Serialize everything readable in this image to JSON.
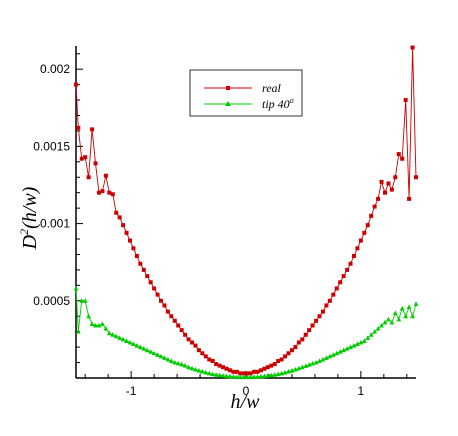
{
  "chart_data": {
    "type": "line",
    "title": "",
    "xlabel": "h/w",
    "ylabel_main": "D",
    "ylabel_sup": "2",
    "ylabel_rest": "(h/w)",
    "xlim": [
      -1.48,
      1.48
    ],
    "ylim": [
      0,
      0.00215
    ],
    "x_ticks": [
      -1,
      0,
      1
    ],
    "x_tick_labels": [
      "-1",
      "0",
      "1"
    ],
    "y_ticks": [
      0.0005,
      0.001,
      0.0015,
      0.002
    ],
    "y_tick_labels": [
      "0.0005",
      "0.001",
      "0.0015",
      "0.002"
    ],
    "grid": false,
    "legend_placement": "top-center",
    "series": [
      {
        "name": "real",
        "name_sup": "",
        "color": "#cc0000",
        "marker": "square",
        "points": [
          [
            -1.48,
            0.0019
          ],
          [
            -1.46,
            0.00162
          ],
          [
            -1.43,
            0.00142
          ],
          [
            -1.4,
            0.00143
          ],
          [
            -1.37,
            0.0013
          ],
          [
            -1.34,
            0.00161
          ],
          [
            -1.31,
            0.00139
          ],
          [
            -1.28,
            0.0012
          ],
          [
            -1.25,
            0.00121
          ],
          [
            -1.22,
            0.00131
          ],
          [
            -1.19,
            0.0012
          ],
          [
            -1.16,
            0.00119
          ],
          [
            -1.13,
            0.00107
          ],
          [
            -1.1,
            0.00104
          ],
          [
            -1.07,
            0.00099
          ],
          [
            -1.04,
            0.00094
          ],
          [
            -1.01,
            0.00089
          ],
          [
            -0.98,
            0.00084
          ],
          [
            -0.95,
            0.00079
          ],
          [
            -0.92,
            0.00074
          ],
          [
            -0.89,
            0.0007
          ],
          [
            -0.86,
            0.00066
          ],
          [
            -0.83,
            0.00062
          ],
          [
            -0.8,
            0.00058
          ],
          [
            -0.77,
            0.00054
          ],
          [
            -0.74,
            0.0005
          ],
          [
            -0.71,
            0.00047
          ],
          [
            -0.68,
            0.00043
          ],
          [
            -0.65,
            0.0004
          ],
          [
            -0.62,
            0.00037
          ],
          [
            -0.59,
            0.00034
          ],
          [
            -0.56,
            0.00031
          ],
          [
            -0.53,
            0.00028
          ],
          [
            -0.5,
            0.00025
          ],
          [
            -0.47,
            0.00023
          ],
          [
            -0.44,
            0.00021
          ],
          [
            -0.41,
            0.00018
          ],
          [
            -0.38,
            0.00016
          ],
          [
            -0.35,
            0.00014
          ],
          [
            -0.32,
            0.00012
          ],
          [
            -0.29,
            0.00011
          ],
          [
            -0.26,
            9e-05
          ],
          [
            -0.23,
            8e-05
          ],
          [
            -0.2,
            7e-05
          ],
          [
            -0.17,
            6e-05
          ],
          [
            -0.14,
            5e-05
          ],
          [
            -0.11,
            4e-05
          ],
          [
            -0.08,
            4e-05
          ],
          [
            -0.05,
            3e-05
          ],
          [
            -0.02,
            3e-05
          ],
          [
            0.01,
            3e-05
          ],
          [
            0.04,
            3e-05
          ],
          [
            0.07,
            4e-05
          ],
          [
            0.1,
            4e-05
          ],
          [
            0.13,
            5e-05
          ],
          [
            0.16,
            6e-05
          ],
          [
            0.19,
            7e-05
          ],
          [
            0.22,
            8e-05
          ],
          [
            0.25,
            9e-05
          ],
          [
            0.28,
            0.00011
          ],
          [
            0.31,
            0.00012
          ],
          [
            0.34,
            0.00014
          ],
          [
            0.37,
            0.00016
          ],
          [
            0.4,
            0.00018
          ],
          [
            0.43,
            0.0002
          ],
          [
            0.46,
            0.00023
          ],
          [
            0.49,
            0.00025
          ],
          [
            0.52,
            0.00028
          ],
          [
            0.55,
            0.00031
          ],
          [
            0.58,
            0.00034
          ],
          [
            0.61,
            0.00037
          ],
          [
            0.64,
            0.0004
          ],
          [
            0.67,
            0.00043
          ],
          [
            0.7,
            0.00047
          ],
          [
            0.73,
            0.0005
          ],
          [
            0.76,
            0.00054
          ],
          [
            0.79,
            0.00058
          ],
          [
            0.82,
            0.00062
          ],
          [
            0.85,
            0.00066
          ],
          [
            0.88,
            0.0007
          ],
          [
            0.91,
            0.00074
          ],
          [
            0.94,
            0.00079
          ],
          [
            0.97,
            0.00084
          ],
          [
            1.0,
            0.00089
          ],
          [
            1.03,
            0.00094
          ],
          [
            1.06,
            0.00099
          ],
          [
            1.09,
            0.00105
          ],
          [
            1.12,
            0.00111
          ],
          [
            1.15,
            0.00116
          ],
          [
            1.18,
            0.00127
          ],
          [
            1.21,
            0.0012
          ],
          [
            1.24,
            0.00126
          ],
          [
            1.27,
            0.00122
          ],
          [
            1.3,
            0.0013
          ],
          [
            1.33,
            0.00145
          ],
          [
            1.36,
            0.00142
          ],
          [
            1.39,
            0.0018
          ],
          [
            1.42,
            0.00116
          ],
          [
            1.45,
            0.00214
          ],
          [
            1.48,
            0.0013
          ]
        ]
      },
      {
        "name": "tip 40",
        "name_sup": "o",
        "color": "#00cc00",
        "marker": "triangle",
        "points": [
          [
            -1.48,
            0.00058
          ],
          [
            -1.46,
            0.0003
          ],
          [
            -1.43,
            0.0005
          ],
          [
            -1.4,
            0.0005
          ],
          [
            -1.37,
            0.0004
          ],
          [
            -1.34,
            0.00035
          ],
          [
            -1.31,
            0.00034
          ],
          [
            -1.28,
            0.00034
          ],
          [
            -1.25,
            0.00035
          ],
          [
            -1.22,
            0.00032
          ],
          [
            -1.19,
            0.00029
          ],
          [
            -1.16,
            0.00028
          ],
          [
            -1.13,
            0.00027
          ],
          [
            -1.1,
            0.00026
          ],
          [
            -1.07,
            0.00025
          ],
          [
            -1.04,
            0.00024
          ],
          [
            -1.01,
            0.00023
          ],
          [
            -0.98,
            0.00022
          ],
          [
            -0.95,
            0.00021
          ],
          [
            -0.92,
            0.0002
          ],
          [
            -0.89,
            0.00019
          ],
          [
            -0.86,
            0.00018
          ],
          [
            -0.83,
            0.00017
          ],
          [
            -0.8,
            0.00016
          ],
          [
            -0.77,
            0.00015
          ],
          [
            -0.74,
            0.00014
          ],
          [
            -0.71,
            0.00013
          ],
          [
            -0.68,
            0.00012
          ],
          [
            -0.65,
            0.00011
          ],
          [
            -0.62,
            0.0001
          ],
          [
            -0.59,
            9.5e-05
          ],
          [
            -0.56,
            8.8e-05
          ],
          [
            -0.53,
            8e-05
          ],
          [
            -0.5,
            7e-05
          ],
          [
            -0.47,
            6.2e-05
          ],
          [
            -0.44,
            5.5e-05
          ],
          [
            -0.41,
            4.8e-05
          ],
          [
            -0.38,
            4.2e-05
          ],
          [
            -0.35,
            3.6e-05
          ],
          [
            -0.32,
            3e-05
          ],
          [
            -0.29,
            2.5e-05
          ],
          [
            -0.26,
            2.1e-05
          ],
          [
            -0.23,
            1.8e-05
          ],
          [
            -0.2,
            1.5e-05
          ],
          [
            -0.17,
            1.2e-05
          ],
          [
            -0.14,
            1e-05
          ],
          [
            -0.11,
            8e-06
          ],
          [
            -0.08,
            7e-06
          ],
          [
            -0.05,
            6e-06
          ],
          [
            -0.02,
            6e-06
          ],
          [
            0.01,
            6e-06
          ],
          [
            0.04,
            6e-06
          ],
          [
            0.07,
            7e-06
          ],
          [
            0.1,
            8e-06
          ],
          [
            0.13,
            1e-05
          ],
          [
            0.16,
            1.2e-05
          ],
          [
            0.19,
            1.5e-05
          ],
          [
            0.22,
            1.8e-05
          ],
          [
            0.25,
            2.1e-05
          ],
          [
            0.28,
            2.5e-05
          ],
          [
            0.31,
            3e-05
          ],
          [
            0.34,
            3.6e-05
          ],
          [
            0.37,
            4.2e-05
          ],
          [
            0.4,
            4.8e-05
          ],
          [
            0.43,
            5.5e-05
          ],
          [
            0.46,
            6.2e-05
          ],
          [
            0.49,
            7e-05
          ],
          [
            0.52,
            7.8e-05
          ],
          [
            0.55,
            8.6e-05
          ],
          [
            0.58,
            9.4e-05
          ],
          [
            0.61,
            0.0001
          ],
          [
            0.64,
            0.00011
          ],
          [
            0.67,
            0.00012
          ],
          [
            0.7,
            0.00013
          ],
          [
            0.73,
            0.00014
          ],
          [
            0.76,
            0.00015
          ],
          [
            0.79,
            0.00016
          ],
          [
            0.82,
            0.00017
          ],
          [
            0.85,
            0.00018
          ],
          [
            0.88,
            0.00019
          ],
          [
            0.91,
            0.0002
          ],
          [
            0.94,
            0.00021
          ],
          [
            0.97,
            0.00022
          ],
          [
            1.0,
            0.00023
          ],
          [
            1.03,
            0.00024
          ],
          [
            1.06,
            0.00026
          ],
          [
            1.09,
            0.00028
          ],
          [
            1.12,
            0.0003
          ],
          [
            1.15,
            0.00032
          ],
          [
            1.18,
            0.00034
          ],
          [
            1.21,
            0.00036
          ],
          [
            1.24,
            0.00038
          ],
          [
            1.27,
            0.00036
          ],
          [
            1.3,
            0.00042
          ],
          [
            1.33,
            0.00038
          ],
          [
            1.36,
            0.00045
          ],
          [
            1.39,
            0.0004
          ],
          [
            1.42,
            0.00046
          ],
          [
            1.45,
            0.0004
          ],
          [
            1.48,
            0.00048
          ]
        ]
      }
    ]
  }
}
